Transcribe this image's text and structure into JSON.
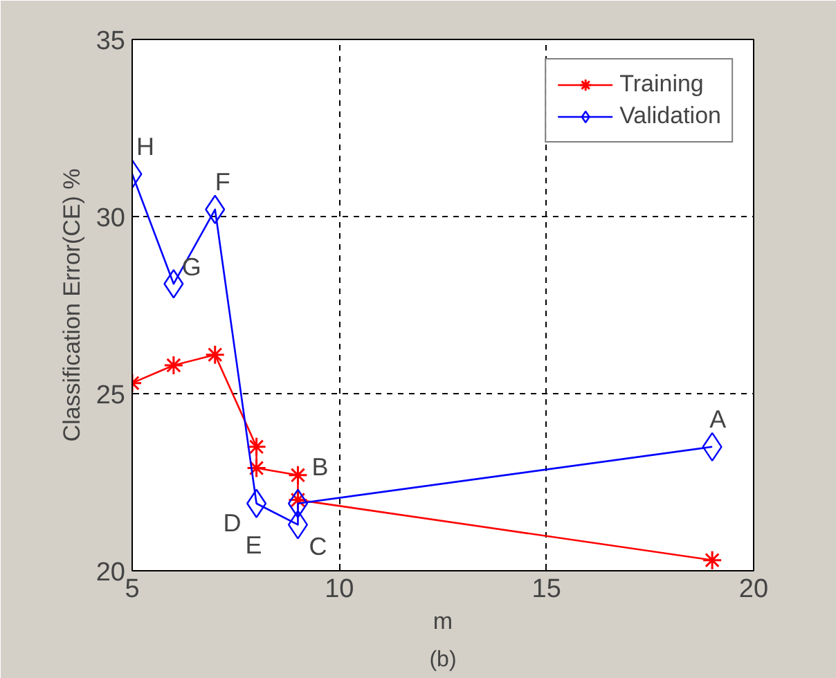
{
  "chart_data": {
    "type": "line",
    "xlabel": "m",
    "ylabel": "Classification Error(CE) %",
    "xlim": [
      5,
      20
    ],
    "ylim": [
      20,
      35
    ],
    "xticks": [
      5,
      10,
      15,
      20
    ],
    "yticks": [
      20,
      25,
      30,
      35
    ],
    "grid": true,
    "legend": "top right",
    "line_style": "solid",
    "series": [
      {
        "name": "Training",
        "color": "#ff0000",
        "marker": "cross",
        "x": [
          5,
          6,
          7,
          8,
          8,
          9,
          9,
          19
        ],
        "values": [
          25.3,
          25.8,
          26.1,
          23.5,
          22.9,
          22.7,
          22.0,
          20.3
        ]
      },
      {
        "name": "Validation",
        "color": "#0000ff",
        "marker": "diamond",
        "x": [
          5,
          6,
          7,
          8,
          9,
          9,
          19
        ],
        "values": [
          31.2,
          28.1,
          30.2,
          21.9,
          21.3,
          21.9,
          23.5
        ]
      }
    ],
    "annotations": [
      {
        "text": "H",
        "x": 5,
        "y": 31.2
      },
      {
        "text": "G",
        "x": 6,
        "y": 28.1
      },
      {
        "text": "F",
        "x": 7,
        "y": 30.2
      },
      {
        "text": "D",
        "x": 8,
        "y": 21.9
      },
      {
        "text": "E",
        "x": 8,
        "y": 21.9
      },
      {
        "text": "C",
        "x": 9,
        "y": 21.3
      },
      {
        "text": "B",
        "x": 9,
        "y": 22.7
      },
      {
        "text": "A",
        "x": 19,
        "y": 23.5
      },
      "(b)"
    ]
  }
}
